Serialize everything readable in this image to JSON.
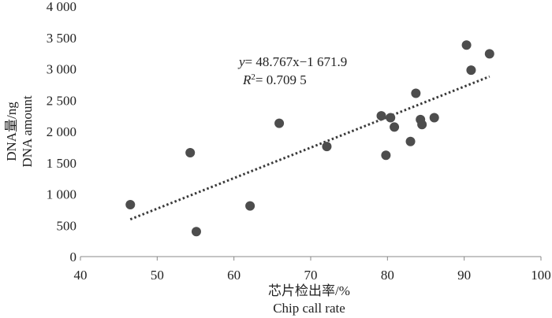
{
  "chart_data": {
    "type": "scatter",
    "title": "",
    "xlabel": "芯片检出率/%",
    "xlabel_en": "Chip call rate",
    "ylabel": "DNA量/ng",
    "ylabel_en": "DNA amount",
    "xlim": [
      40,
      100
    ],
    "ylim": [
      0,
      4000
    ],
    "x_ticks": [
      40,
      50,
      60,
      70,
      80,
      90,
      100
    ],
    "x_tick_labels": [
      "40",
      "50",
      "60",
      "70",
      "80",
      "90",
      "100"
    ],
    "y_ticks": [
      0,
      500,
      1000,
      1500,
      2000,
      2500,
      3000,
      3500,
      4000
    ],
    "y_tick_labels": [
      "0",
      "500",
      "1 000",
      "1 500",
      "2 000",
      "2 500",
      "3 000",
      "3 500",
      "4 000"
    ],
    "grid": false,
    "legend": "none",
    "points": [
      {
        "x": 46.5,
        "y": 830
      },
      {
        "x": 54.3,
        "y": 1660
      },
      {
        "x": 55.1,
        "y": 400
      },
      {
        "x": 62.1,
        "y": 810
      },
      {
        "x": 65.9,
        "y": 2130
      },
      {
        "x": 72.1,
        "y": 1760
      },
      {
        "x": 79.2,
        "y": 2250
      },
      {
        "x": 79.8,
        "y": 1620
      },
      {
        "x": 80.4,
        "y": 2220
      },
      {
        "x": 80.9,
        "y": 2070
      },
      {
        "x": 83.0,
        "y": 1840
      },
      {
        "x": 83.7,
        "y": 2610
      },
      {
        "x": 84.3,
        "y": 2190
      },
      {
        "x": 84.5,
        "y": 2110
      },
      {
        "x": 86.1,
        "y": 2220
      },
      {
        "x": 90.3,
        "y": 3380
      },
      {
        "x": 90.9,
        "y": 2980
      },
      {
        "x": 93.3,
        "y": 3240
      }
    ],
    "trendline": {
      "slope": 48.767,
      "intercept": -1671.9,
      "x_range": [
        46.5,
        93.3
      ],
      "style": "dotted"
    },
    "annotations": {
      "eq_var": "y",
      "eq_rest": "= 48.767x−1 671.9",
      "r2_var": "R",
      "r2_sup": "2",
      "r2_rest": "= 0.709 5"
    },
    "colors": {
      "point": "#4d4d4d",
      "axis": "#888888",
      "trend": "#3a3a3a"
    }
  }
}
